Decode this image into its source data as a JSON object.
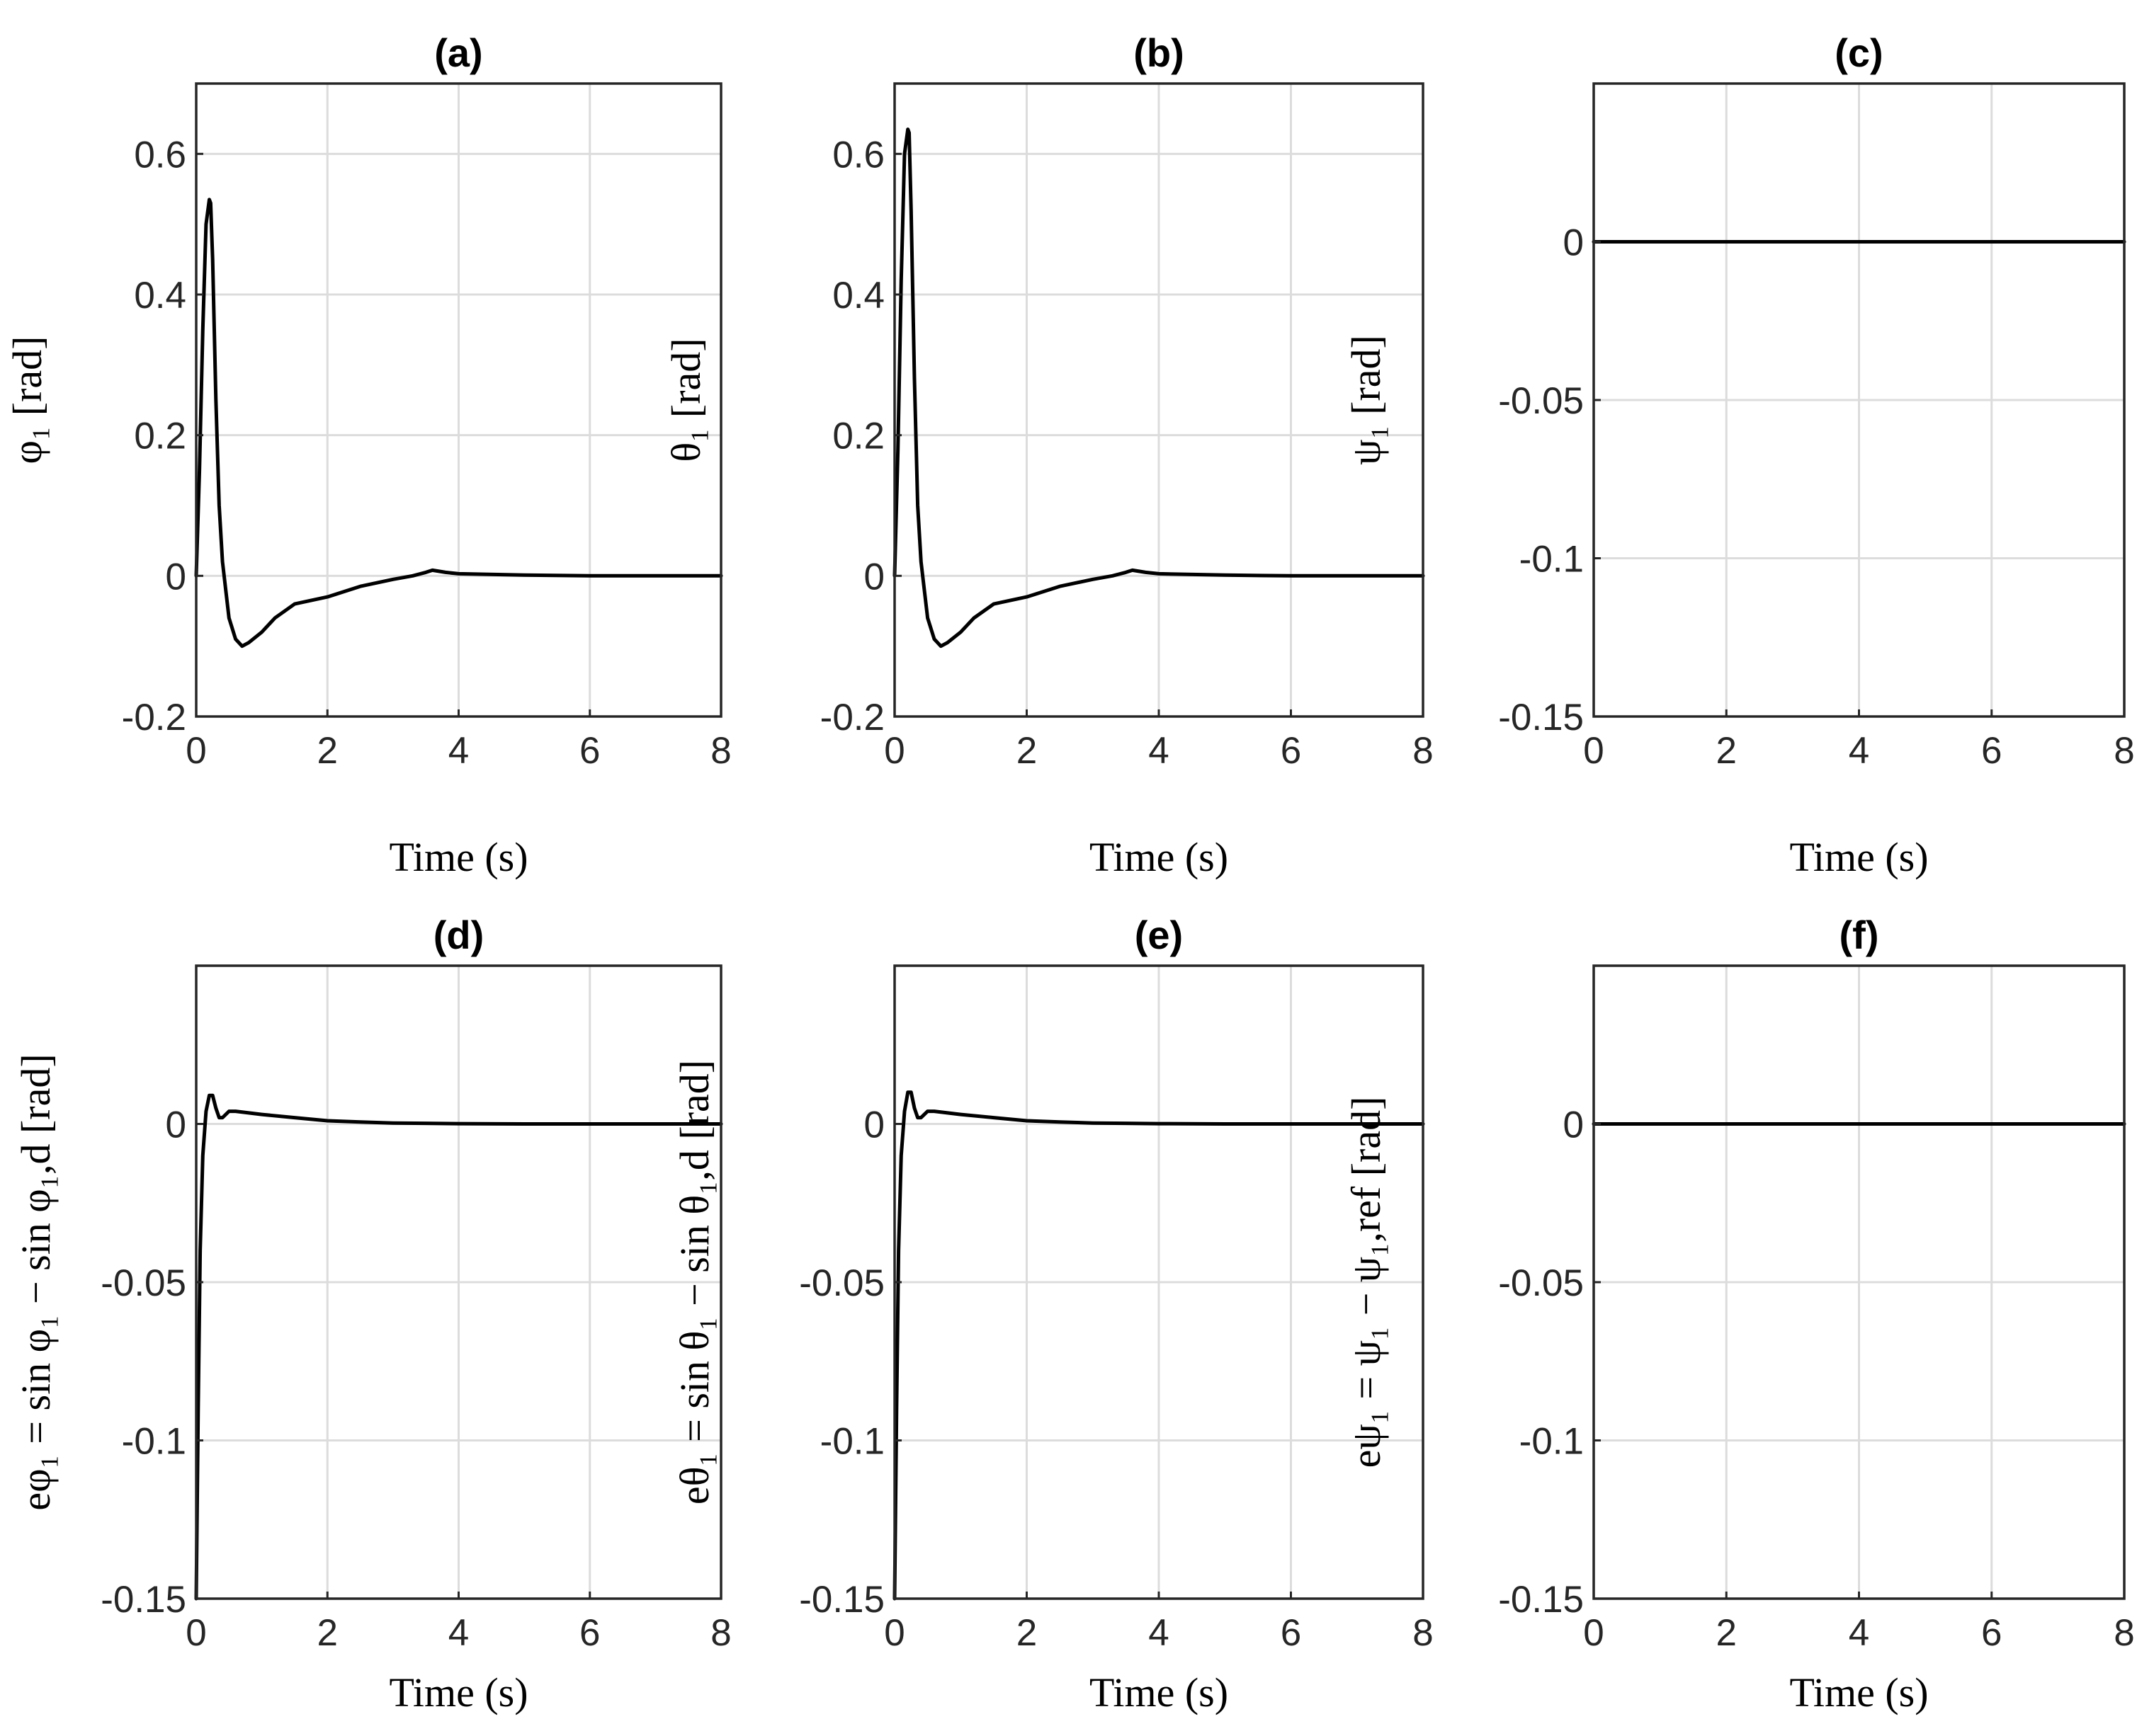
{
  "chart_data": [
    {
      "id": "a",
      "type": "line",
      "title": "(a)",
      "xlabel": "Time (s)",
      "ylabel": "φ₁ [rad]",
      "xlim": [
        0,
        8
      ],
      "ylim": [
        -0.2,
        0.7
      ],
      "xticks": [
        0,
        2,
        4,
        6,
        8
      ],
      "xtick_labels": [
        "0",
        "2",
        "4",
        "6",
        "8"
      ],
      "yticks": [
        -0.2,
        0,
        0.2,
        0.4,
        0.6
      ],
      "ytick_labels": [
        "-0.2",
        "0",
        "0.2",
        "0.4",
        "0.6"
      ],
      "grid": true,
      "series": [
        {
          "name": "phi1",
          "x": [
            0,
            0.05,
            0.1,
            0.15,
            0.2,
            0.22,
            0.25,
            0.3,
            0.35,
            0.4,
            0.5,
            0.6,
            0.7,
            0.8,
            1.0,
            1.2,
            1.5,
            2.0,
            2.5,
            3.0,
            3.3,
            3.5,
            3.6,
            3.8,
            4.0,
            5.0,
            6.0,
            7.0,
            8.0
          ],
          "y": [
            0,
            0.15,
            0.35,
            0.5,
            0.535,
            0.53,
            0.45,
            0.25,
            0.1,
            0.02,
            -0.06,
            -0.09,
            -0.1,
            -0.095,
            -0.08,
            -0.06,
            -0.04,
            -0.03,
            -0.015,
            -0.005,
            0,
            0.005,
            0.008,
            0.005,
            0.003,
            0.001,
            0,
            0,
            0
          ]
        }
      ]
    },
    {
      "id": "b",
      "type": "line",
      "title": "(b)",
      "xlabel": "Time (s)",
      "ylabel": "θ₁ [rad]",
      "xlim": [
        0,
        8
      ],
      "ylim": [
        -0.2,
        0.7
      ],
      "xticks": [
        0,
        2,
        4,
        6,
        8
      ],
      "xtick_labels": [
        "0",
        "2",
        "4",
        "6",
        "8"
      ],
      "yticks": [
        -0.2,
        0,
        0.2,
        0.4,
        0.6
      ],
      "ytick_labels": [
        "-0.2",
        "0",
        "0.2",
        "0.4",
        "0.6"
      ],
      "grid": true,
      "series": [
        {
          "name": "theta1",
          "x": [
            0,
            0.05,
            0.1,
            0.15,
            0.2,
            0.22,
            0.25,
            0.3,
            0.35,
            0.4,
            0.5,
            0.6,
            0.7,
            0.8,
            1.0,
            1.2,
            1.5,
            2.0,
            2.5,
            3.0,
            3.3,
            3.5,
            3.6,
            3.8,
            4.0,
            5.0,
            6.0,
            7.0,
            8.0
          ],
          "y": [
            0,
            0.18,
            0.42,
            0.6,
            0.635,
            0.63,
            0.52,
            0.28,
            0.1,
            0.02,
            -0.06,
            -0.09,
            -0.1,
            -0.095,
            -0.08,
            -0.06,
            -0.04,
            -0.03,
            -0.015,
            -0.005,
            0,
            0.005,
            0.008,
            0.005,
            0.003,
            0.001,
            0,
            0,
            0
          ]
        }
      ]
    },
    {
      "id": "c",
      "type": "line",
      "title": "(c)",
      "xlabel": "Time (s)",
      "ylabel": "ψ₁ [rad]",
      "xlim": [
        0,
        8
      ],
      "ylim": [
        -0.15,
        0.05
      ],
      "xticks": [
        0,
        2,
        4,
        6,
        8
      ],
      "xtick_labels": [
        "0",
        "2",
        "4",
        "6",
        "8"
      ],
      "yticks": [
        -0.15,
        -0.1,
        -0.05,
        0
      ],
      "ytick_labels": [
        "-0.15",
        "-0.1",
        "-0.05",
        "0"
      ],
      "grid": true,
      "series": [
        {
          "name": "psi1",
          "x": [
            0,
            8
          ],
          "y": [
            0,
            0
          ]
        }
      ]
    },
    {
      "id": "d",
      "type": "line",
      "title": "(d)",
      "xlabel": "Time (s)",
      "ylabel": "eφ₁ = sin φ₁ − sin φ₁,d  [rad]",
      "xlim": [
        0,
        8
      ],
      "ylim": [
        -0.15,
        0.05
      ],
      "xticks": [
        0,
        2,
        4,
        6,
        8
      ],
      "xtick_labels": [
        "0",
        "2",
        "4",
        "6",
        "8"
      ],
      "yticks": [
        -0.15,
        -0.1,
        -0.05,
        0
      ],
      "ytick_labels": [
        "-0.15",
        "-0.1",
        "-0.05",
        "0"
      ],
      "grid": true,
      "series": [
        {
          "name": "e_phi1",
          "x": [
            0,
            0.03,
            0.06,
            0.1,
            0.15,
            0.2,
            0.25,
            0.3,
            0.35,
            0.4,
            0.5,
            0.6,
            0.8,
            1.0,
            1.5,
            2.0,
            2.5,
            3.0,
            3.5,
            4.0,
            5.0,
            6.0,
            7.0,
            8.0
          ],
          "y": [
            -0.15,
            -0.09,
            -0.04,
            -0.01,
            0.004,
            0.009,
            0.009,
            0.005,
            0.002,
            0.002,
            0.004,
            0.004,
            0.0035,
            0.003,
            0.002,
            0.001,
            0.0006,
            0.0003,
            0.0002,
            0.0001,
            0,
            0,
            0,
            0
          ]
        }
      ]
    },
    {
      "id": "e",
      "type": "line",
      "title": "(e)",
      "xlabel": "Time (s)",
      "ylabel": "eθ₁ = sin θ₁ − sin θ₁,d [rad]",
      "xlim": [
        0,
        8
      ],
      "ylim": [
        -0.15,
        0.05
      ],
      "xticks": [
        0,
        2,
        4,
        6,
        8
      ],
      "xtick_labels": [
        "0",
        "2",
        "4",
        "6",
        "8"
      ],
      "yticks": [
        -0.15,
        -0.1,
        -0.05,
        0
      ],
      "ytick_labels": [
        "-0.15",
        "-0.1",
        "-0.05",
        "0"
      ],
      "grid": true,
      "series": [
        {
          "name": "e_theta1",
          "x": [
            0,
            0.03,
            0.06,
            0.1,
            0.15,
            0.2,
            0.25,
            0.3,
            0.35,
            0.4,
            0.5,
            0.6,
            0.8,
            1.0,
            1.5,
            2.0,
            2.5,
            3.0,
            3.5,
            4.0,
            5.0,
            6.0,
            7.0,
            8.0
          ],
          "y": [
            -0.15,
            -0.09,
            -0.04,
            -0.01,
            0.004,
            0.01,
            0.01,
            0.005,
            0.002,
            0.002,
            0.004,
            0.004,
            0.0035,
            0.003,
            0.002,
            0.001,
            0.0006,
            0.0003,
            0.0002,
            0.0001,
            0,
            0,
            0,
            0
          ]
        }
      ]
    },
    {
      "id": "f",
      "type": "line",
      "title": "(f)",
      "xlabel": "Time (s)",
      "ylabel": "eψ₁ = ψ₁ − ψ₁,ref [rad]",
      "xlim": [
        0,
        8
      ],
      "ylim": [
        -0.15,
        0.05
      ],
      "xticks": [
        0,
        2,
        4,
        6,
        8
      ],
      "xtick_labels": [
        "0",
        "2",
        "4",
        "6",
        "8"
      ],
      "yticks": [
        -0.15,
        -0.1,
        -0.05,
        0
      ],
      "ytick_labels": [
        "-0.15",
        "-0.1",
        "-0.05",
        "0"
      ],
      "grid": true,
      "series": [
        {
          "name": "e_psi1",
          "x": [
            0,
            8
          ],
          "y": [
            0,
            0
          ]
        }
      ]
    }
  ]
}
